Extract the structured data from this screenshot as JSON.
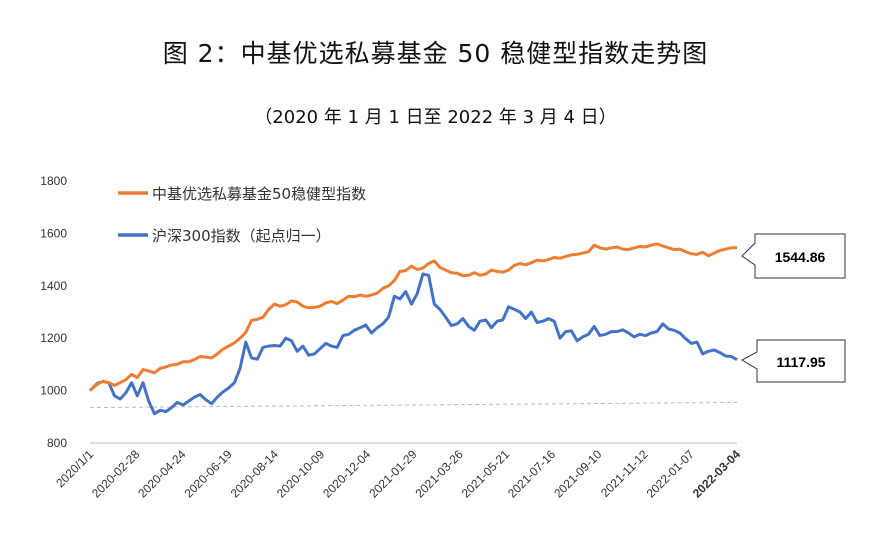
{
  "title": "图 2：中基优选私募基金 50 稳健型指数走势图",
  "subtitle": "（2020 年 1 月 1 日至 2022 年 3 月 4 日）",
  "colors": {
    "orange": "#ED7D31",
    "blue": "#4472C4"
  },
  "chart_data": {
    "type": "line",
    "title": "图 2：中基优选私募基金 50 稳健型指数走势图",
    "subtitle": "（2020 年 1 月 1 日至 2022 年 3 月 4 日）",
    "ylim": [
      800,
      1800
    ],
    "yticks": [
      "800",
      "1000",
      "1200",
      "1400",
      "1600",
      "1800"
    ],
    "xlim": [
      "2020-01-01",
      "2022-03-04"
    ],
    "xticks": [
      "2020/1/1",
      "2020-02-28",
      "2020-04-24",
      "2020-06-19",
      "2020-08-14",
      "2020-10-09",
      "2020-12-04",
      "2021-01-29",
      "2021-03-26",
      "2021-05-21",
      "2021-07-16",
      "2021-09-10",
      "2021-11-12",
      "2022-01-07",
      "2022-03-04"
    ],
    "grid": false,
    "legend": "top-left",
    "callouts": [
      "1544.86",
      "1117.95"
    ],
    "series": [
      {
        "name": "中基优选私募基金50稳健型指数",
        "color": "#ED7D31",
        "points": [
          [
            "2020-01-01",
            1000
          ],
          [
            "2020-01-10",
            1025
          ],
          [
            "2020-01-17",
            1035
          ],
          [
            "2020-01-24",
            1030
          ],
          [
            "2020-01-31",
            1020
          ],
          [
            "2020-02-07",
            1030
          ],
          [
            "2020-02-14",
            1042
          ],
          [
            "2020-02-21",
            1062
          ],
          [
            "2020-02-28",
            1050
          ],
          [
            "2020-03-06",
            1080
          ],
          [
            "2020-03-13",
            1075
          ],
          [
            "2020-03-20",
            1068
          ],
          [
            "2020-03-27",
            1085
          ],
          [
            "2020-04-03",
            1090
          ],
          [
            "2020-04-10",
            1098
          ],
          [
            "2020-04-17",
            1100
          ],
          [
            "2020-04-24",
            1110
          ],
          [
            "2020-05-01",
            1110
          ],
          [
            "2020-05-08",
            1118
          ],
          [
            "2020-05-15",
            1130
          ],
          [
            "2020-05-22",
            1128
          ],
          [
            "2020-05-29",
            1125
          ],
          [
            "2020-06-05",
            1140
          ],
          [
            "2020-06-12",
            1158
          ],
          [
            "2020-06-19",
            1170
          ],
          [
            "2020-06-26",
            1182
          ],
          [
            "2020-07-03",
            1200
          ],
          [
            "2020-07-10",
            1222
          ],
          [
            "2020-07-17",
            1268
          ],
          [
            "2020-07-24",
            1272
          ],
          [
            "2020-07-31",
            1280
          ],
          [
            "2020-08-07",
            1310
          ],
          [
            "2020-08-14",
            1330
          ],
          [
            "2020-08-21",
            1322
          ],
          [
            "2020-08-28",
            1328
          ],
          [
            "2020-09-04",
            1342
          ],
          [
            "2020-09-11",
            1338
          ],
          [
            "2020-09-18",
            1322
          ],
          [
            "2020-09-25",
            1316
          ],
          [
            "2020-10-02",
            1318
          ],
          [
            "2020-10-09",
            1322
          ],
          [
            "2020-10-16",
            1335
          ],
          [
            "2020-10-23",
            1340
          ],
          [
            "2020-10-30",
            1332
          ],
          [
            "2020-11-06",
            1345
          ],
          [
            "2020-11-13",
            1360
          ],
          [
            "2020-11-20",
            1358
          ],
          [
            "2020-11-27",
            1365
          ],
          [
            "2020-12-04",
            1360
          ],
          [
            "2020-12-11",
            1365
          ],
          [
            "2020-12-18",
            1372
          ],
          [
            "2020-12-25",
            1390
          ],
          [
            "2021-01-01",
            1400
          ],
          [
            "2021-01-08",
            1420
          ],
          [
            "2021-01-15",
            1455
          ],
          [
            "2021-01-22",
            1458
          ],
          [
            "2021-01-29",
            1475
          ],
          [
            "2021-02-05",
            1462
          ],
          [
            "2021-02-12",
            1468
          ],
          [
            "2021-02-19",
            1485
          ],
          [
            "2021-02-26",
            1495
          ],
          [
            "2021-03-05",
            1470
          ],
          [
            "2021-03-12",
            1460
          ],
          [
            "2021-03-19",
            1450
          ],
          [
            "2021-03-26",
            1448
          ],
          [
            "2021-04-02",
            1438
          ],
          [
            "2021-04-09",
            1440
          ],
          [
            "2021-04-16",
            1450
          ],
          [
            "2021-04-23",
            1440
          ],
          [
            "2021-04-30",
            1445
          ],
          [
            "2021-05-07",
            1460
          ],
          [
            "2021-05-14",
            1455
          ],
          [
            "2021-05-21",
            1452
          ],
          [
            "2021-05-28",
            1460
          ],
          [
            "2021-06-04",
            1478
          ],
          [
            "2021-06-11",
            1485
          ],
          [
            "2021-06-18",
            1480
          ],
          [
            "2021-06-25",
            1488
          ],
          [
            "2021-07-02",
            1498
          ],
          [
            "2021-07-09",
            1495
          ],
          [
            "2021-07-16",
            1500
          ],
          [
            "2021-07-23",
            1508
          ],
          [
            "2021-07-30",
            1505
          ],
          [
            "2021-08-06",
            1512
          ],
          [
            "2021-08-13",
            1518
          ],
          [
            "2021-08-20",
            1520
          ],
          [
            "2021-08-27",
            1525
          ],
          [
            "2021-09-03",
            1530
          ],
          [
            "2021-09-10",
            1555
          ],
          [
            "2021-09-17",
            1545
          ],
          [
            "2021-09-24",
            1540
          ],
          [
            "2021-10-01",
            1545
          ],
          [
            "2021-10-08",
            1548
          ],
          [
            "2021-10-15",
            1540
          ],
          [
            "2021-10-22",
            1538
          ],
          [
            "2021-10-29",
            1545
          ],
          [
            "2021-11-05",
            1550
          ],
          [
            "2021-11-12",
            1548
          ],
          [
            "2021-11-19",
            1555
          ],
          [
            "2021-11-26",
            1560
          ],
          [
            "2021-12-03",
            1552
          ],
          [
            "2021-12-10",
            1545
          ],
          [
            "2021-12-17",
            1538
          ],
          [
            "2021-12-24",
            1540
          ],
          [
            "2021-12-31",
            1530
          ],
          [
            "2022-01-07",
            1522
          ],
          [
            "2022-01-14",
            1520
          ],
          [
            "2022-01-21",
            1528
          ],
          [
            "2022-01-28",
            1515
          ],
          [
            "2022-02-04",
            1525
          ],
          [
            "2022-02-11",
            1535
          ],
          [
            "2022-02-18",
            1540
          ],
          [
            "2022-02-25",
            1545
          ],
          [
            "2022-03-04",
            1544.86
          ]
        ]
      },
      {
        "name": "沪深300指数（起点归一）",
        "color": "#4472C4",
        "points": [
          [
            "2020-01-01",
            1000
          ],
          [
            "2020-01-10",
            1028
          ],
          [
            "2020-01-17",
            1035
          ],
          [
            "2020-01-24",
            1030
          ],
          [
            "2020-01-31",
            980
          ],
          [
            "2020-02-07",
            968
          ],
          [
            "2020-02-14",
            992
          ],
          [
            "2020-02-21",
            1030
          ],
          [
            "2020-02-28",
            980
          ],
          [
            "2020-03-06",
            1030
          ],
          [
            "2020-03-13",
            960
          ],
          [
            "2020-03-20",
            912
          ],
          [
            "2020-03-27",
            925
          ],
          [
            "2020-04-03",
            920
          ],
          [
            "2020-04-10",
            935
          ],
          [
            "2020-04-17",
            955
          ],
          [
            "2020-04-24",
            945
          ],
          [
            "2020-05-01",
            960
          ],
          [
            "2020-05-08",
            975
          ],
          [
            "2020-05-15",
            985
          ],
          [
            "2020-05-22",
            965
          ],
          [
            "2020-05-29",
            950
          ],
          [
            "2020-06-05",
            975
          ],
          [
            "2020-06-12",
            995
          ],
          [
            "2020-06-19",
            1010
          ],
          [
            "2020-06-26",
            1030
          ],
          [
            "2020-07-03",
            1085
          ],
          [
            "2020-07-10",
            1185
          ],
          [
            "2020-07-17",
            1125
          ],
          [
            "2020-07-24",
            1120
          ],
          [
            "2020-07-31",
            1165
          ],
          [
            "2020-08-07",
            1170
          ],
          [
            "2020-08-14",
            1172
          ],
          [
            "2020-08-21",
            1170
          ],
          [
            "2020-08-28",
            1200
          ],
          [
            "2020-09-04",
            1190
          ],
          [
            "2020-09-11",
            1150
          ],
          [
            "2020-09-18",
            1170
          ],
          [
            "2020-09-25",
            1135
          ],
          [
            "2020-10-02",
            1140
          ],
          [
            "2020-10-09",
            1160
          ],
          [
            "2020-10-16",
            1180
          ],
          [
            "2020-10-23",
            1170
          ],
          [
            "2020-10-30",
            1165
          ],
          [
            "2020-11-06",
            1210
          ],
          [
            "2020-11-13",
            1215
          ],
          [
            "2020-11-20",
            1230
          ],
          [
            "2020-11-27",
            1240
          ],
          [
            "2020-12-04",
            1250
          ],
          [
            "2020-12-11",
            1220
          ],
          [
            "2020-12-18",
            1240
          ],
          [
            "2020-12-25",
            1255
          ],
          [
            "2021-01-01",
            1280
          ],
          [
            "2021-01-08",
            1360
          ],
          [
            "2021-01-15",
            1350
          ],
          [
            "2021-01-22",
            1378
          ],
          [
            "2021-01-29",
            1330
          ],
          [
            "2021-02-05",
            1370
          ],
          [
            "2021-02-12",
            1445
          ],
          [
            "2021-02-19",
            1440
          ],
          [
            "2021-02-26",
            1330
          ],
          [
            "2021-03-05",
            1310
          ],
          [
            "2021-03-12",
            1280
          ],
          [
            "2021-03-19",
            1248
          ],
          [
            "2021-03-26",
            1255
          ],
          [
            "2021-04-02",
            1275
          ],
          [
            "2021-04-09",
            1245
          ],
          [
            "2021-04-16",
            1230
          ],
          [
            "2021-04-23",
            1265
          ],
          [
            "2021-04-30",
            1270
          ],
          [
            "2021-05-07",
            1240
          ],
          [
            "2021-05-14",
            1265
          ],
          [
            "2021-05-21",
            1270
          ],
          [
            "2021-05-28",
            1320
          ],
          [
            "2021-06-04",
            1310
          ],
          [
            "2021-06-11",
            1300
          ],
          [
            "2021-06-18",
            1275
          ],
          [
            "2021-06-25",
            1300
          ],
          [
            "2021-07-02",
            1260
          ],
          [
            "2021-07-09",
            1265
          ],
          [
            "2021-07-16",
            1275
          ],
          [
            "2021-07-23",
            1265
          ],
          [
            "2021-07-30",
            1200
          ],
          [
            "2021-08-06",
            1225
          ],
          [
            "2021-08-13",
            1228
          ],
          [
            "2021-08-20",
            1190
          ],
          [
            "2021-08-27",
            1205
          ],
          [
            "2021-09-03",
            1215
          ],
          [
            "2021-09-10",
            1245
          ],
          [
            "2021-09-17",
            1210
          ],
          [
            "2021-09-24",
            1215
          ],
          [
            "2021-10-01",
            1225
          ],
          [
            "2021-10-08",
            1225
          ],
          [
            "2021-10-15",
            1232
          ],
          [
            "2021-10-22",
            1220
          ],
          [
            "2021-10-29",
            1205
          ],
          [
            "2021-11-05",
            1215
          ],
          [
            "2021-11-12",
            1210
          ],
          [
            "2021-11-19",
            1220
          ],
          [
            "2021-11-26",
            1225
          ],
          [
            "2021-12-03",
            1255
          ],
          [
            "2021-12-10",
            1235
          ],
          [
            "2021-12-17",
            1230
          ],
          [
            "2021-12-24",
            1220
          ],
          [
            "2021-12-31",
            1198
          ],
          [
            "2022-01-07",
            1180
          ],
          [
            "2022-01-14",
            1185
          ],
          [
            "2022-01-21",
            1140
          ],
          [
            "2022-01-28",
            1150
          ],
          [
            "2022-02-04",
            1155
          ],
          [
            "2022-02-11",
            1145
          ],
          [
            "2022-02-18",
            1132
          ],
          [
            "2022-02-25",
            1130
          ],
          [
            "2022-03-04",
            1117.95
          ]
        ]
      },
      {
        "name": "",
        "style": "dashed",
        "color": "#BBBBBB",
        "points": [
          [
            "2020-01-01",
            935
          ],
          [
            "2022-03-04",
            955
          ]
        ]
      }
    ]
  }
}
